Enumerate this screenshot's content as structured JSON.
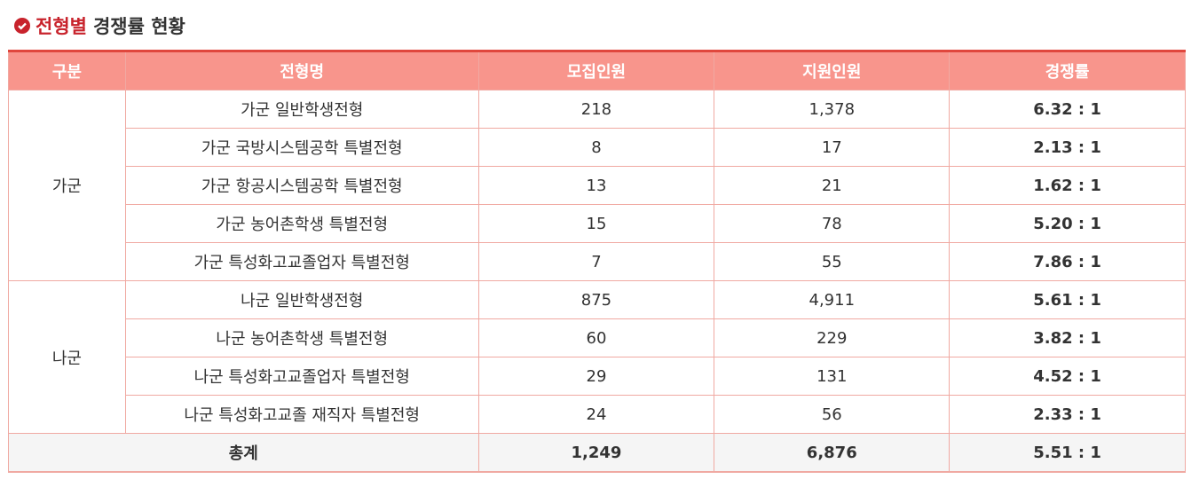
{
  "title": {
    "highlight": "전형별",
    "rest": "경쟁률 현황"
  },
  "table": {
    "header": [
      "구분",
      "전형명",
      "모집인원",
      "지원인원",
      "경쟁률"
    ],
    "groups": [
      {
        "name": "가군",
        "rows": [
          [
            "가군 일반학생전형",
            "218",
            "1,378",
            "6.32 : 1"
          ],
          [
            "가군 국방시스템공학 특별전형",
            "8",
            "17",
            "2.13 : 1"
          ],
          [
            "가군 항공시스템공학 특별전형",
            "13",
            "21",
            "1.62 : 1"
          ],
          [
            "가군 농어촌학생 특별전형",
            "15",
            "78",
            "5.20 : 1"
          ],
          [
            "가군 특성화고교졸업자 특별전형",
            "7",
            "55",
            "7.86 : 1"
          ]
        ]
      },
      {
        "name": "나군",
        "rows": [
          [
            "나군 일반학생전형",
            "875",
            "4,911",
            "5.61 : 1"
          ],
          [
            "나군 농어촌학생 특별전형",
            "60",
            "229",
            "3.82 : 1"
          ],
          [
            "나군 특성화고교졸업자 특별전형",
            "29",
            "131",
            "4.52 : 1"
          ],
          [
            "나군 특성화고교졸 재직자 특별전형",
            "24",
            "56",
            "2.33 : 1"
          ]
        ]
      }
    ],
    "total": {
      "label": "총계",
      "values": [
        "1,249",
        "6,876",
        "5.51 : 1"
      ]
    }
  }
}
